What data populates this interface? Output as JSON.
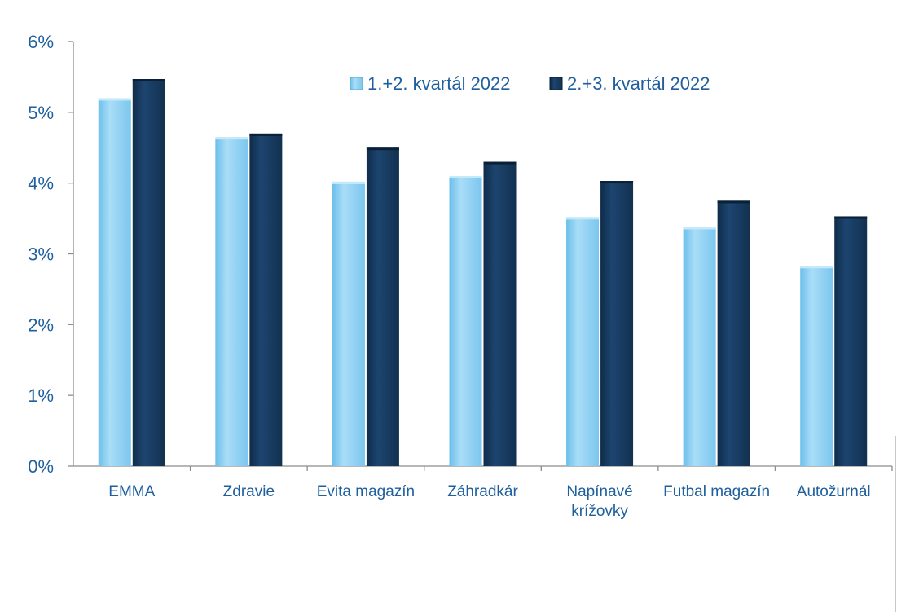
{
  "chart_data": {
    "type": "bar",
    "title": "",
    "xlabel": "",
    "ylabel": "",
    "ylim": [
      0,
      6
    ],
    "y_ticks": [
      "0%",
      "1%",
      "2%",
      "3%",
      "4%",
      "5%",
      "6%"
    ],
    "categories": [
      [
        "EMMA"
      ],
      [
        "Zdravie"
      ],
      [
        "Evita magazín"
      ],
      [
        "Záhradkár"
      ],
      [
        "Napínavé",
        "krížovky"
      ],
      [
        "Futbal magazín"
      ],
      [
        "Autožurnál"
      ]
    ],
    "series": [
      {
        "name": "1.+2. kvartál 2022",
        "color": "#8fd0f2",
        "values": [
          5.2,
          4.65,
          4.02,
          4.1,
          3.52,
          3.38,
          2.83
        ]
      },
      {
        "name": "2.+3. kvartál 2022",
        "color": "#173a5e",
        "values": [
          5.47,
          4.7,
          4.5,
          4.3,
          4.03,
          3.75,
          3.53
        ]
      }
    ],
    "legend_position": "top-right",
    "grid": false
  }
}
